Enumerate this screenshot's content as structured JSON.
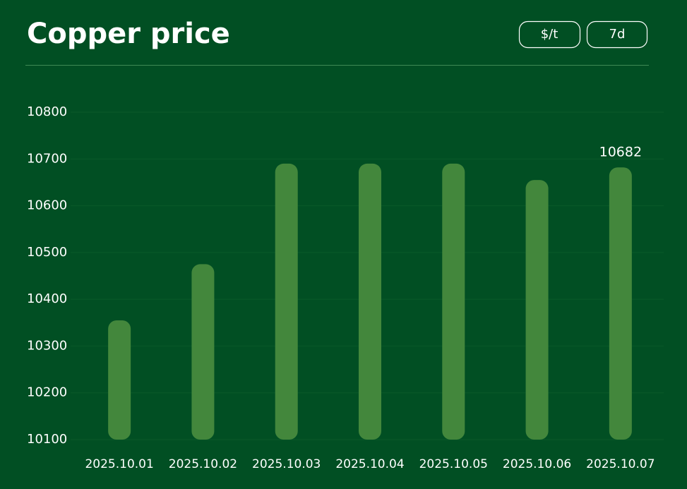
{
  "header": {
    "title": "Copper price",
    "buttons": [
      "$/t",
      "7d"
    ]
  },
  "chart_data": {
    "type": "bar",
    "categories": [
      "2025.10.01",
      "2025.10.02",
      "2025.10.03",
      "2025.10.04",
      "2025.10.05",
      "2025.10.06",
      "2025.10.07"
    ],
    "values": [
      10355,
      10475,
      10690,
      10690,
      10690,
      10655,
      10682
    ],
    "color": "#43873c",
    "ylim": [
      10100,
      10800
    ],
    "yticks": [
      10100,
      10200,
      10300,
      10400,
      10500,
      10600,
      10700,
      10800
    ],
    "grid": true,
    "labeled_points": [
      6
    ]
  }
}
